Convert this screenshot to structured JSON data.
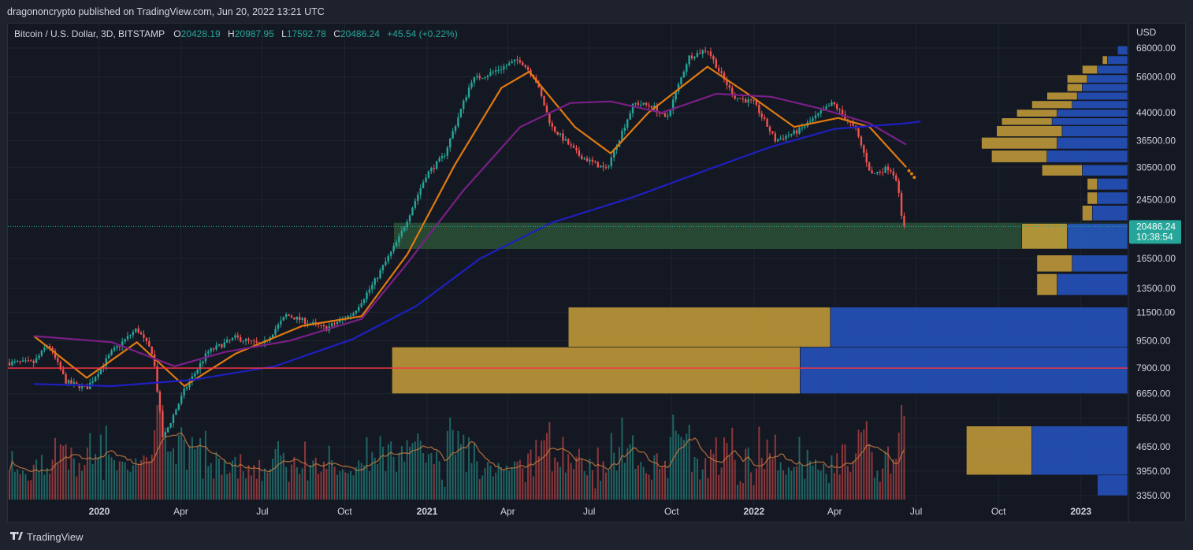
{
  "header": {
    "publish_line": "dragononcrypto published on TradingView.com, Jun 20, 2022 13:21 UTC"
  },
  "legend": {
    "symbol": "Bitcoin / U.S. Dollar, 3D, BITSTAMP",
    "o_label": "O",
    "o_value": "20428.19",
    "h_label": "H",
    "h_value": "20987.95",
    "l_label": "L",
    "l_value": "17592.78",
    "c_label": "C",
    "c_value": "20486.24",
    "change": "+45.54 (+0.22%)"
  },
  "footer": {
    "brand": "TradingView"
  },
  "colors": {
    "up": "#26a69a",
    "down": "#ef5350",
    "ma_fast": "#e07a10",
    "ma_mid": "#7b1f86",
    "ma_slow": "#1f1fbf",
    "zone": "#2e5a3a",
    "hline": "#f23645",
    "vp_up": "#2455c3",
    "vp_down": "#c8a03a"
  },
  "chart_data": {
    "type": "candlestick",
    "currency_label": "USD",
    "scale": "log",
    "ylim": [
      3350,
      70000
    ],
    "x_labels": [
      "2020",
      "Apr",
      "Jul",
      "Oct",
      "2021",
      "Apr",
      "Jul",
      "Oct",
      "2022",
      "Apr",
      "Jul",
      "Oct",
      "2023"
    ],
    "price_ticks": [
      "68000.00",
      "56000.00",
      "44000.00",
      "36500.00",
      "30500.00",
      "24500.00",
      "16500.00",
      "13500.00",
      "11500.00",
      "9500.00",
      "7900.00",
      "6650.00",
      "5650.00",
      "4650.00",
      "3950.00",
      "3350.00"
    ],
    "last_price_label": "20486.24",
    "countdown_label": "10:38:54",
    "last_price": 20486.24,
    "horizontal_line": 7900,
    "support_zone": [
      17600,
      21000
    ],
    "close_path": [
      [
        "2019-10-20",
        8200
      ],
      [
        "2019-11-05",
        9300
      ],
      [
        "2019-11-25",
        7200
      ],
      [
        "2019-12-18",
        6900
      ],
      [
        "2020-01-15",
        8800
      ],
      [
        "2020-02-12",
        10300
      ],
      [
        "2020-03-01",
        8700
      ],
      [
        "2020-03-12",
        4900
      ],
      [
        "2020-04-05",
        6800
      ],
      [
        "2020-05-01",
        8800
      ],
      [
        "2020-06-01",
        9700
      ],
      [
        "2020-07-01",
        9200
      ],
      [
        "2020-07-28",
        11300
      ],
      [
        "2020-09-10",
        10300
      ],
      [
        "2020-10-10",
        11400
      ],
      [
        "2020-11-01",
        13800
      ],
      [
        "2020-12-01",
        19000
      ],
      [
        "2020-12-31",
        29000
      ],
      [
        "2021-01-20",
        33000
      ],
      [
        "2021-02-20",
        55000
      ],
      [
        "2021-03-10",
        57000
      ],
      [
        "2021-04-14",
        63000
      ],
      [
        "2021-05-01",
        56000
      ],
      [
        "2021-05-20",
        40000
      ],
      [
        "2021-06-20",
        33000
      ],
      [
        "2021-07-20",
        30000
      ],
      [
        "2021-08-20",
        47000
      ],
      [
        "2021-09-10",
        46000
      ],
      [
        "2021-09-25",
        42000
      ],
      [
        "2021-10-20",
        64000
      ],
      [
        "2021-11-10",
        67500
      ],
      [
        "2021-11-25",
        57000
      ],
      [
        "2021-12-10",
        49000
      ],
      [
        "2022-01-01",
        47000
      ],
      [
        "2022-01-25",
        36500
      ],
      [
        "2022-02-20",
        39000
      ],
      [
        "2022-03-30",
        47000
      ],
      [
        "2022-04-25",
        39000
      ],
      [
        "2022-05-12",
        29000
      ],
      [
        "2022-06-01",
        30500
      ],
      [
        "2022-06-10",
        28000
      ],
      [
        "2022-06-14",
        22000
      ],
      [
        "2022-06-20",
        20486
      ]
    ],
    "moving_averages": [
      {
        "color": "#e07a10",
        "points": [
          [
            "2019-10-20",
            9800
          ],
          [
            "2019-12-18",
            7400
          ],
          [
            "2020-02-12",
            9400
          ],
          [
            "2020-04-05",
            7000
          ],
          [
            "2020-06-01",
            8700
          ],
          [
            "2020-08-15",
            10500
          ],
          [
            "2020-10-20",
            11200
          ],
          [
            "2020-12-10",
            17000
          ],
          [
            "2021-02-01",
            31000
          ],
          [
            "2021-03-25",
            52000
          ],
          [
            "2021-04-25",
            58000
          ],
          [
            "2021-06-15",
            40000
          ],
          [
            "2021-07-25",
            33500
          ],
          [
            "2021-09-05",
            44000
          ],
          [
            "2021-11-10",
            60000
          ],
          [
            "2021-12-25",
            50000
          ],
          [
            "2022-02-15",
            40000
          ],
          [
            "2022-04-05",
            42500
          ],
          [
            "2022-05-10",
            40000
          ],
          [
            "2022-06-20",
            30500
          ]
        ]
      },
      {
        "color": "#7b1f86",
        "points": [
          [
            "2019-10-20",
            9800
          ],
          [
            "2020-01-15",
            9400
          ],
          [
            "2020-03-25",
            8000
          ],
          [
            "2020-05-20",
            8800
          ],
          [
            "2020-08-01",
            9500
          ],
          [
            "2020-10-20",
            11000
          ],
          [
            "2020-12-10",
            16000
          ],
          [
            "2021-02-10",
            26000
          ],
          [
            "2021-04-15",
            40000
          ],
          [
            "2021-06-10",
            47000
          ],
          [
            "2021-07-25",
            47500
          ],
          [
            "2021-09-20",
            44000
          ],
          [
            "2021-11-20",
            50000
          ],
          [
            "2022-01-20",
            49000
          ],
          [
            "2022-03-20",
            45000
          ],
          [
            "2022-05-10",
            41000
          ],
          [
            "2022-06-20",
            35500
          ]
        ]
      },
      {
        "color": "#1f1fbf",
        "points": [
          [
            "2019-10-20",
            7100
          ],
          [
            "2020-01-15",
            7000
          ],
          [
            "2020-04-15",
            7300
          ],
          [
            "2020-07-15",
            8000
          ],
          [
            "2020-10-10",
            9600
          ],
          [
            "2020-12-20",
            12000
          ],
          [
            "2021-03-01",
            16500
          ],
          [
            "2021-05-20",
            21000
          ],
          [
            "2021-08-20",
            25000
          ],
          [
            "2021-11-10",
            30000
          ],
          [
            "2022-01-20",
            35000
          ],
          [
            "2022-04-01",
            39500
          ],
          [
            "2022-06-20",
            41000
          ],
          [
            "2022-07-06",
            41500
          ]
        ]
      }
    ],
    "volume_profile": [
      {
        "low": 3350,
        "high": 3850,
        "up": 0.06,
        "down": 0.0
      },
      {
        "low": 3850,
        "high": 5350,
        "up": 0.19,
        "down": 0.13
      },
      {
        "low": 6650,
        "high": 9100,
        "up": 0.65,
        "down": 0.81
      },
      {
        "low": 9100,
        "high": 11900,
        "up": 0.59,
        "down": 0.52
      },
      {
        "low": 12900,
        "high": 14900,
        "up": 0.14,
        "down": 0.04
      },
      {
        "low": 15100,
        "high": 16900,
        "up": 0.11,
        "down": 0.07
      },
      {
        "low": 17600,
        "high": 20900,
        "up": 0.12,
        "down": 0.09
      },
      {
        "low": 21300,
        "high": 23600,
        "up": 0.07,
        "down": 0.02
      },
      {
        "low": 23800,
        "high": 25800,
        "up": 0.06,
        "down": 0.02
      },
      {
        "low": 26200,
        "high": 28300,
        "up": 0.06,
        "down": 0.02
      },
      {
        "low": 28800,
        "high": 31000,
        "up": 0.09,
        "down": 0.08
      },
      {
        "low": 31500,
        "high": 34200,
        "up": 0.16,
        "down": 0.11
      },
      {
        "low": 34500,
        "high": 37300,
        "up": 0.14,
        "down": 0.15
      },
      {
        "low": 37500,
        "high": 40300,
        "up": 0.13,
        "down": 0.13
      },
      {
        "low": 40500,
        "high": 42500,
        "up": 0.15,
        "down": 0.1
      },
      {
        "low": 42800,
        "high": 45000,
        "up": 0.14,
        "down": 0.08
      },
      {
        "low": 45300,
        "high": 47700,
        "up": 0.11,
        "down": 0.08
      },
      {
        "low": 48000,
        "high": 50500,
        "up": 0.1,
        "down": 0.06
      },
      {
        "low": 50800,
        "high": 53500,
        "up": 0.09,
        "down": 0.03
      },
      {
        "low": 53800,
        "high": 56800,
        "up": 0.08,
        "down": 0.04
      },
      {
        "low": 57200,
        "high": 60500,
        "up": 0.06,
        "down": 0.03
      },
      {
        "low": 61000,
        "high": 64500,
        "up": 0.04,
        "down": 0.01
      },
      {
        "low": 65000,
        "high": 69000,
        "up": 0.02,
        "down": 0.0
      }
    ]
  }
}
